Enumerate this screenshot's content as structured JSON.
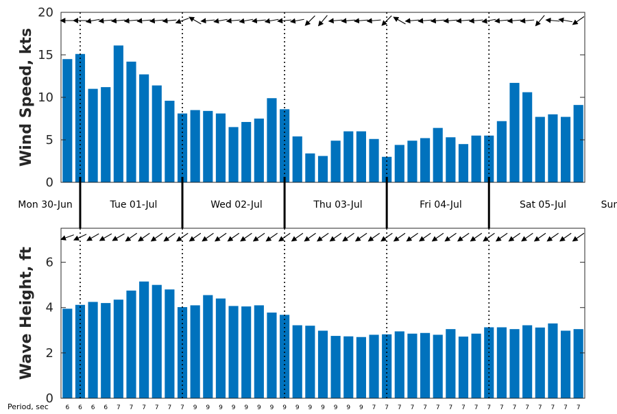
{
  "colors": {
    "bar": "#0072BD",
    "axis": "#262626",
    "marker": "#000000"
  },
  "day_labels": [
    "Mon 30-Jun",
    "Tue 01-Jul",
    "Wed 02-Jul",
    "Thu 03-Jul",
    "Fri 04-Jul",
    "Sat 05-Jul",
    "Sun"
  ],
  "period_title": "Period, sec",
  "periods": [
    6,
    6,
    6,
    6,
    7,
    7,
    7,
    7,
    7,
    7,
    9,
    9,
    9,
    9,
    9,
    9,
    9,
    9,
    9,
    9,
    9,
    9,
    9,
    9,
    7,
    7,
    7,
    7,
    7,
    7,
    7,
    7,
    7,
    7,
    7,
    7,
    7,
    7,
    7,
    7,
    7
  ],
  "chart_data": [
    {
      "type": "bar",
      "ylabel": "Wind Speed, kts",
      "ylim": [
        0,
        20
      ],
      "yticks": [
        0,
        5,
        10,
        15,
        20
      ],
      "grid": false,
      "values": [
        14.5,
        15.1,
        11.0,
        11.2,
        16.1,
        14.2,
        12.7,
        11.4,
        9.6,
        8.1,
        8.5,
        8.4,
        8.1,
        6.5,
        7.1,
        7.5,
        9.9,
        8.6,
        5.4,
        3.4,
        3.1,
        4.9,
        6.0,
        6.0,
        5.1,
        3.0,
        4.4,
        4.9,
        5.2,
        6.4,
        5.3,
        4.5,
        5.5,
        5.5,
        7.2,
        11.7,
        10.6,
        7.7,
        8.0,
        7.7,
        9.1
      ],
      "direction_arrows_deg": [
        90,
        90,
        100,
        95,
        95,
        95,
        95,
        95,
        95,
        110,
        60,
        95,
        100,
        95,
        100,
        95,
        100,
        95,
        100,
        135,
        140,
        95,
        95,
        95,
        95,
        135,
        60,
        95,
        95,
        95,
        95,
        95,
        95,
        100,
        95,
        95,
        95,
        140,
        85,
        80,
        125
      ]
    },
    {
      "type": "bar",
      "ylabel": "Wave Height, ft",
      "ylim": [
        0,
        7.5
      ],
      "yticks": [
        0,
        2,
        4,
        6
      ],
      "grid": false,
      "values": [
        3.95,
        4.12,
        4.25,
        4.2,
        4.35,
        4.75,
        5.15,
        5.0,
        4.8,
        4.02,
        4.1,
        4.55,
        4.4,
        4.07,
        4.05,
        4.1,
        3.78,
        3.68,
        3.22,
        3.2,
        2.98,
        2.75,
        2.73,
        2.7,
        2.8,
        2.82,
        2.95,
        2.85,
        2.88,
        2.8,
        3.05,
        2.72,
        2.85,
        3.13,
        3.13,
        3.05,
        3.22,
        3.12,
        3.3,
        2.98,
        3.05
      ],
      "direction_arrows_deg": [
        110,
        115,
        120,
        120,
        120,
        125,
        125,
        125,
        125,
        125,
        125,
        125,
        125,
        125,
        125,
        125,
        125,
        125,
        125,
        125,
        125,
        125,
        125,
        125,
        125,
        125,
        125,
        125,
        125,
        125,
        125,
        125,
        125,
        125,
        125,
        125,
        125,
        125,
        125,
        125,
        125
      ]
    }
  ]
}
